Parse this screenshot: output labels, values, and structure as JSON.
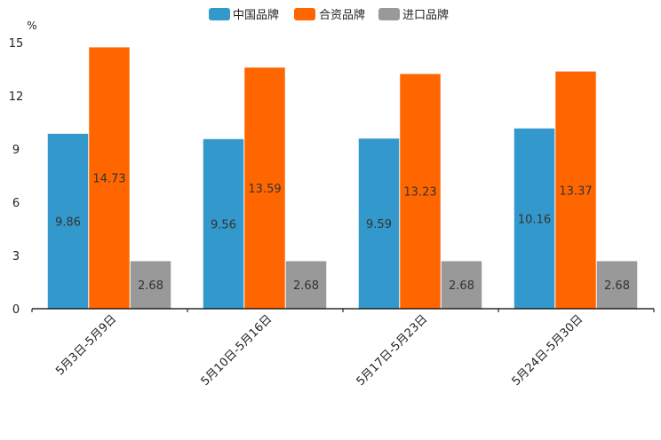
{
  "chart_data": {
    "type": "bar",
    "title": "",
    "ylabel": "%",
    "xlabel": "",
    "ylim": [
      0,
      15
    ],
    "yticks": [
      0,
      3,
      6,
      9,
      12,
      15
    ],
    "categories": [
      "5月3日-5月9日",
      "5月10日-5月16日",
      "5月17日-5月23日",
      "5月24日-5月30日"
    ],
    "series": [
      {
        "name": "中国品牌",
        "color": "#3399cc",
        "values": [
          9.86,
          9.56,
          9.59,
          10.16
        ]
      },
      {
        "name": "合资品牌",
        "color": "#ff6600",
        "values": [
          14.73,
          13.59,
          13.23,
          13.37
        ]
      },
      {
        "name": "进口品牌",
        "color": "#999999",
        "values": [
          2.68,
          2.68,
          2.68,
          2.68
        ]
      }
    ],
    "legend_position": "top-center"
  }
}
